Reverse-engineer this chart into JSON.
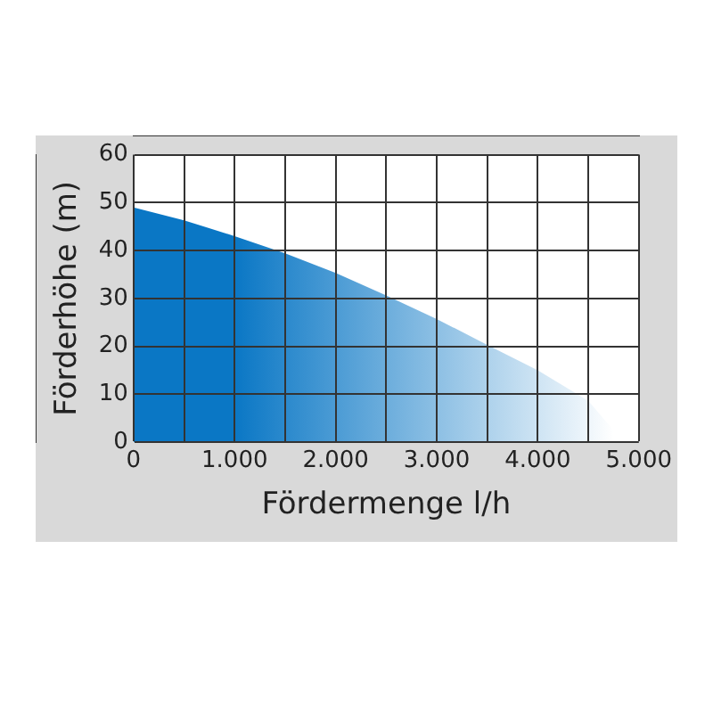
{
  "chart_data": {
    "type": "area",
    "xlabel": "Fördermenge l/h",
    "ylabel": "Förderhöhe (m)",
    "x": [
      0,
      500,
      1000,
      1500,
      2000,
      2500,
      3000,
      3500,
      4000,
      4500,
      4850
    ],
    "series": [
      {
        "color": "#0a77c5",
        "values": [
          49,
          46.3,
          43,
          39.4,
          35.3,
          30.6,
          25.7,
          20.3,
          15,
          8.6,
          0
        ]
      }
    ],
    "xlim": [
      0,
      5000
    ],
    "xticks": [
      0,
      {
        "value": 500,
        "label": null
      },
      {
        "value": 1000,
        "label": "1.000"
      },
      {
        "value": 1500,
        "label": null
      },
      {
        "value": 2000,
        "label": "2.000"
      },
      {
        "value": 2500,
        "label": null
      },
      {
        "value": 3000,
        "label": "3.000"
      },
      {
        "value": 3500,
        "label": null
      },
      {
        "value": 4000,
        "label": "4.000"
      },
      {
        "value": 4500,
        "label": null
      },
      {
        "value": 5000,
        "label": "5.000"
      }
    ],
    "ylim": [
      0,
      60
    ],
    "yticks": [
      0,
      10,
      20,
      30,
      40,
      50,
      60
    ],
    "grid": true,
    "legend": false
  }
}
